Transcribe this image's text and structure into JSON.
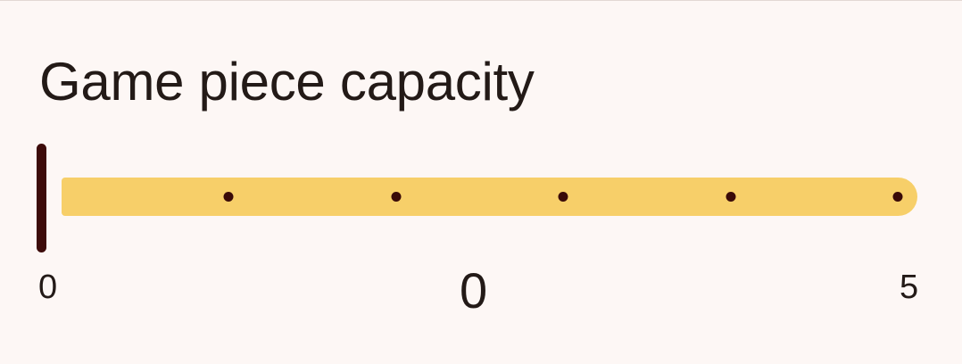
{
  "title": "Game piece capacity",
  "slider": {
    "min": 0,
    "max": 5,
    "value": 0,
    "min_label": "0",
    "max_label": "5",
    "value_label": "0",
    "tick_values": [
      1,
      2,
      3,
      4,
      5
    ]
  },
  "colors": {
    "track": "#f7cf69",
    "thumb": "#3d0b0a",
    "tick": "#3a0a08",
    "background": "#fdf7f5",
    "text": "#231a17"
  }
}
